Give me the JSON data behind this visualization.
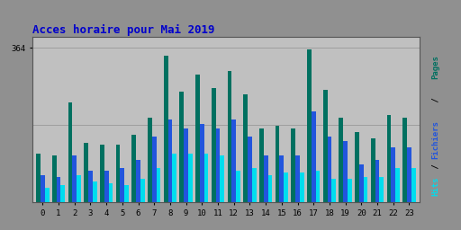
{
  "title": "Acces horaire pour Mai 2019",
  "title_color": "#0000cc",
  "title_fontsize": 9,
  "hours": [
    0,
    1,
    2,
    3,
    4,
    5,
    6,
    7,
    8,
    9,
    10,
    11,
    12,
    13,
    14,
    15,
    16,
    17,
    18,
    19,
    20,
    21,
    22,
    23
  ],
  "pages": [
    115,
    110,
    235,
    140,
    135,
    135,
    160,
    200,
    345,
    260,
    300,
    270,
    310,
    255,
    175,
    180,
    175,
    360,
    265,
    200,
    165,
    150,
    205,
    200
  ],
  "fichiers": [
    65,
    60,
    110,
    75,
    75,
    80,
    100,
    155,
    195,
    175,
    185,
    175,
    195,
    155,
    110,
    110,
    110,
    215,
    155,
    145,
    90,
    100,
    130,
    130
  ],
  "hits": [
    35,
    40,
    65,
    50,
    45,
    40,
    55,
    80,
    115,
    115,
    115,
    110,
    75,
    80,
    65,
    70,
    70,
    75,
    55,
    55,
    60,
    60,
    80,
    80
  ],
  "ylim": [
    0,
    390
  ],
  "ytick_val": 364,
  "ytick_label": "364",
  "bar_width": 0.27,
  "color_pages": "#007060",
  "color_fichiers": "#2255dd",
  "color_hits": "#00ddee",
  "bg_plot": "#c0c0c0",
  "bg_fig": "#909090",
  "grid_color": "#999999",
  "label_pages_color": "#007060",
  "label_fichiers_color": "#2255dd",
  "label_hits_color": "#00ddee",
  "label_slash_color": "#000000"
}
